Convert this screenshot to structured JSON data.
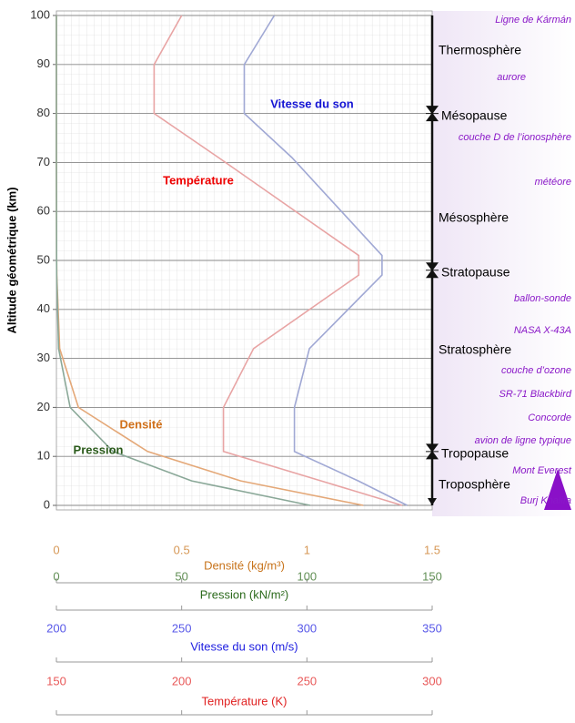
{
  "chart_data": {
    "type": "line",
    "y_label": "Altitude géométrique (km)",
    "y": [
      0,
      5,
      11,
      20,
      32,
      47,
      51,
      71,
      80,
      90,
      100
    ],
    "ylim": [
      0,
      100
    ],
    "yticks": [
      0,
      10,
      20,
      30,
      40,
      50,
      60,
      70,
      80,
      90,
      100
    ],
    "grid": true,
    "x_axes": [
      {
        "label": "Densité (kg/m³)",
        "color": "#c8741c",
        "xlim": [
          0,
          1.5
        ],
        "xticks": [
          0,
          0.5,
          1,
          1.5
        ]
      },
      {
        "label": "Pression (kN/m²)",
        "color": "#2c6a1c",
        "xlim": [
          0,
          150
        ],
        "xticks": [
          0,
          50,
          100,
          150
        ]
      },
      {
        "label": "Vitesse du son (m/s)",
        "color": "#2020e0",
        "xlim": [
          200,
          350
        ],
        "xticks": [
          200,
          250,
          300,
          350
        ]
      },
      {
        "label": "Température (K)",
        "color": "#e02020",
        "xlim": [
          150,
          300
        ],
        "xticks": [
          150,
          200,
          250,
          300
        ]
      }
    ],
    "series": [
      {
        "name": "Densité",
        "color": "#e4a878",
        "label_color": "#d0701a",
        "axis": 0,
        "values": [
          1.225,
          0.736,
          0.364,
          0.088,
          0.013,
          0.0014,
          0.0009,
          0.0001,
          0,
          0,
          0
        ]
      },
      {
        "name": "Pression",
        "color": "#8aa898",
        "label_color": "#2a5a1a",
        "axis": 1,
        "values": [
          101.3,
          54,
          22.6,
          5.5,
          0.87,
          0.11,
          0.07,
          0.004,
          0.001,
          0,
          0
        ]
      },
      {
        "name": "Vitesse du son",
        "color": "#a0a8d4",
        "label_color": "#1414d4",
        "axis": 2,
        "values": [
          340,
          320.5,
          295,
          295,
          301,
          330,
          330,
          294,
          275,
          275,
          287
        ]
      },
      {
        "name": "Température",
        "color": "#e8a4a4",
        "label_color": "#ee0000",
        "axis": 3,
        "values": [
          288,
          255.7,
          216.7,
          216.7,
          228.7,
          270.7,
          270.7,
          214.7,
          189,
          189,
          200
        ]
      }
    ],
    "boundaries": [
      {
        "name": "Mésopause",
        "altitude": 80
      },
      {
        "name": "Stratopause",
        "altitude": 48
      },
      {
        "name": "Tropopause",
        "altitude": 11
      }
    ],
    "layers": [
      "Thermosphère",
      "Mésosphère",
      "Stratosphère",
      "Troposphère"
    ],
    "annotations": [
      "Ligne de Kármán",
      "aurore",
      "couche D de l’ionosphère",
      "météore",
      "ballon-sonde",
      "NASA X-43A",
      "couche d’ozone",
      "SR-71 Blackbird",
      "Concorde",
      "avion de ligne typique",
      "Mont Everest",
      "Burj Khalifa"
    ]
  }
}
